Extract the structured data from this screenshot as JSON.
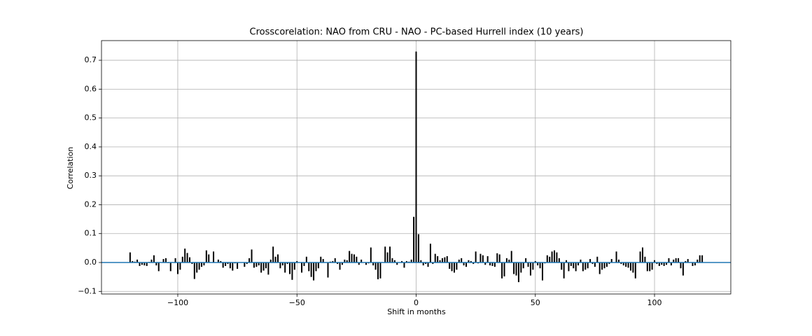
{
  "chart_data": {
    "type": "xcorr",
    "title": "Crosscorelation: NAO from CRU - NAO - PC-based Hurrell index (10 years)",
    "xlabel": "Shift in months",
    "ylabel": "Correlation",
    "color": "#000000",
    "baseline_color": "#1f77b4",
    "grid": true,
    "xlim": [
      -132,
      132
    ],
    "ylim": [
      -0.109,
      0.768
    ],
    "xticks": [
      {
        "value": -100,
        "label": "−100"
      },
      {
        "value": -50,
        "label": "−50"
      },
      0,
      50,
      100
    ],
    "yticks": [
      {
        "value": -0.1,
        "label": "−0.1"
      },
      {
        "value": 0,
        "label": "0.0"
      },
      0.1,
      0.2,
      0.3,
      0.4,
      0.5,
      0.6,
      0.7
    ],
    "x": [
      -120,
      -119,
      -118,
      -117,
      -116,
      -115,
      -114,
      -113,
      -112,
      -111,
      -110,
      -109,
      -108,
      -107,
      -106,
      -105,
      -104,
      -103,
      -102,
      -101,
      -100,
      -99,
      -98,
      -97,
      -96,
      -95,
      -94,
      -93,
      -92,
      -91,
      -90,
      -89,
      -88,
      -87,
      -86,
      -85,
      -84,
      -83,
      -82,
      -81,
      -80,
      -79,
      -78,
      -77,
      -76,
      -75,
      -74,
      -73,
      -72,
      -71,
      -70,
      -69,
      -68,
      -67,
      -66,
      -65,
      -64,
      -63,
      -62,
      -61,
      -60,
      -59,
      -58,
      -57,
      -56,
      -55,
      -54,
      -53,
      -52,
      -51,
      -50,
      -49,
      -48,
      -47,
      -46,
      -45,
      -44,
      -43,
      -42,
      -41,
      -40,
      -39,
      -38,
      -37,
      -36,
      -35,
      -34,
      -33,
      -32,
      -31,
      -30,
      -29,
      -28,
      -27,
      -26,
      -25,
      -24,
      -23,
      -22,
      -21,
      -20,
      -19,
      -18,
      -17,
      -16,
      -15,
      -14,
      -13,
      -12,
      -11,
      -10,
      -9,
      -8,
      -7,
      -6,
      -5,
      -4,
      -3,
      -2,
      -1,
      0,
      1,
      2,
      3,
      4,
      5,
      6,
      7,
      8,
      9,
      10,
      11,
      12,
      13,
      14,
      15,
      16,
      17,
      18,
      19,
      20,
      21,
      22,
      23,
      24,
      25,
      26,
      27,
      28,
      29,
      30,
      31,
      32,
      33,
      34,
      35,
      36,
      37,
      38,
      39,
      40,
      41,
      42,
      43,
      44,
      45,
      46,
      47,
      48,
      49,
      50,
      51,
      52,
      53,
      54,
      55,
      56,
      57,
      58,
      59,
      60,
      61,
      62,
      63,
      64,
      65,
      66,
      67,
      68,
      69,
      70,
      71,
      72,
      73,
      74,
      75,
      76,
      77,
      78,
      79,
      80,
      81,
      82,
      83,
      84,
      85,
      86,
      87,
      88,
      89,
      90,
      91,
      92,
      93,
      94,
      95,
      96,
      97,
      98,
      99,
      100,
      101,
      102,
      103,
      104,
      105,
      106,
      107,
      108,
      109,
      110,
      111,
      112,
      113,
      114,
      115,
      116,
      117,
      118,
      119,
      120
    ],
    "values": [
      0.035,
      0.005,
      0.003,
      0.01,
      -0.012,
      -0.008,
      -0.01,
      -0.012,
      0.002,
      0.01,
      0.025,
      -0.01,
      -0.03,
      0,
      0.012,
      0.015,
      -0.002,
      -0.03,
      0,
      0.015,
      -0.04,
      -0.025,
      0.02,
      0.048,
      0.033,
      0.018,
      -0.005,
      -0.057,
      -0.035,
      -0.025,
      -0.015,
      -0.01,
      0.042,
      0.028,
      0,
      0.038,
      0,
      0.01,
      0.005,
      -0.018,
      -0.012,
      -0.005,
      -0.02,
      -0.028,
      -0.003,
      -0.022,
      0,
      0,
      -0.015,
      -0.005,
      0.015,
      0.045,
      -0.018,
      -0.015,
      -0.01,
      -0.035,
      -0.028,
      -0.02,
      -0.042,
      0.01,
      0.055,
      0.02,
      0.028,
      -0.02,
      -0.01,
      -0.035,
      -0.005,
      -0.04,
      -0.06,
      -0.025,
      0.005,
      0,
      -0.035,
      -0.012,
      0.02,
      -0.03,
      -0.05,
      -0.062,
      -0.03,
      -0.02,
      0.02,
      0.012,
      0,
      -0.052,
      0.003,
      0.005,
      0.015,
      -0.005,
      -0.025,
      -0.008,
      0.01,
      0.008,
      0.04,
      0.03,
      0.028,
      0.02,
      -0.008,
      0.01,
      0,
      -0.008,
      -0.003,
      0.052,
      -0.01,
      -0.025,
      -0.058,
      -0.055,
      0,
      0.055,
      0.035,
      0.055,
      0.015,
      0.008,
      -0.008,
      0,
      0.005,
      -0.018,
      0.005,
      0.003,
      0.01,
      0.158,
      0.73,
      0.098,
      0.008,
      -0.01,
      -0.005,
      -0.015,
      0.065,
      -0.005,
      0.03,
      0.022,
      0.008,
      0.015,
      0.018,
      0.022,
      -0.022,
      -0.03,
      -0.035,
      -0.025,
      0.01,
      0.015,
      -0.01,
      -0.015,
      0.008,
      0.005,
      -0.005,
      0.038,
      -0.003,
      0.03,
      0.025,
      -0.008,
      0.022,
      -0.01,
      -0.012,
      -0.015,
      0.032,
      0.028,
      -0.055,
      -0.048,
      0.015,
      0.01,
      0.04,
      -0.04,
      -0.045,
      -0.068,
      -0.035,
      -0.02,
      0.015,
      -0.015,
      -0.045,
      -0.025,
      0.005,
      -0.01,
      -0.02,
      -0.062,
      -0.003,
      0.025,
      0.02,
      0.038,
      0.042,
      0.035,
      0.015,
      -0.025,
      -0.055,
      0.008,
      -0.03,
      -0.012,
      -0.02,
      -0.03,
      -0.01,
      0.01,
      -0.03,
      -0.025,
      -0.02,
      0.012,
      -0.005,
      -0.015,
      0.02,
      -0.04,
      -0.025,
      -0.02,
      -0.015,
      -0.005,
      0.012,
      0,
      0.038,
      0.01,
      -0.005,
      -0.01,
      -0.015,
      -0.018,
      -0.028,
      -0.035,
      -0.055,
      0,
      0.038,
      0.052,
      0.02,
      -0.03,
      -0.03,
      -0.025,
      0.008,
      -0.005,
      -0.012,
      -0.008,
      -0.012,
      -0.008,
      0.015,
      -0.01,
      0.01,
      0.015,
      0.015,
      -0.02,
      -0.045,
      0.005,
      0.012,
      0,
      -0.012,
      -0.01,
      0.01,
      0.025,
      0.025
    ]
  }
}
